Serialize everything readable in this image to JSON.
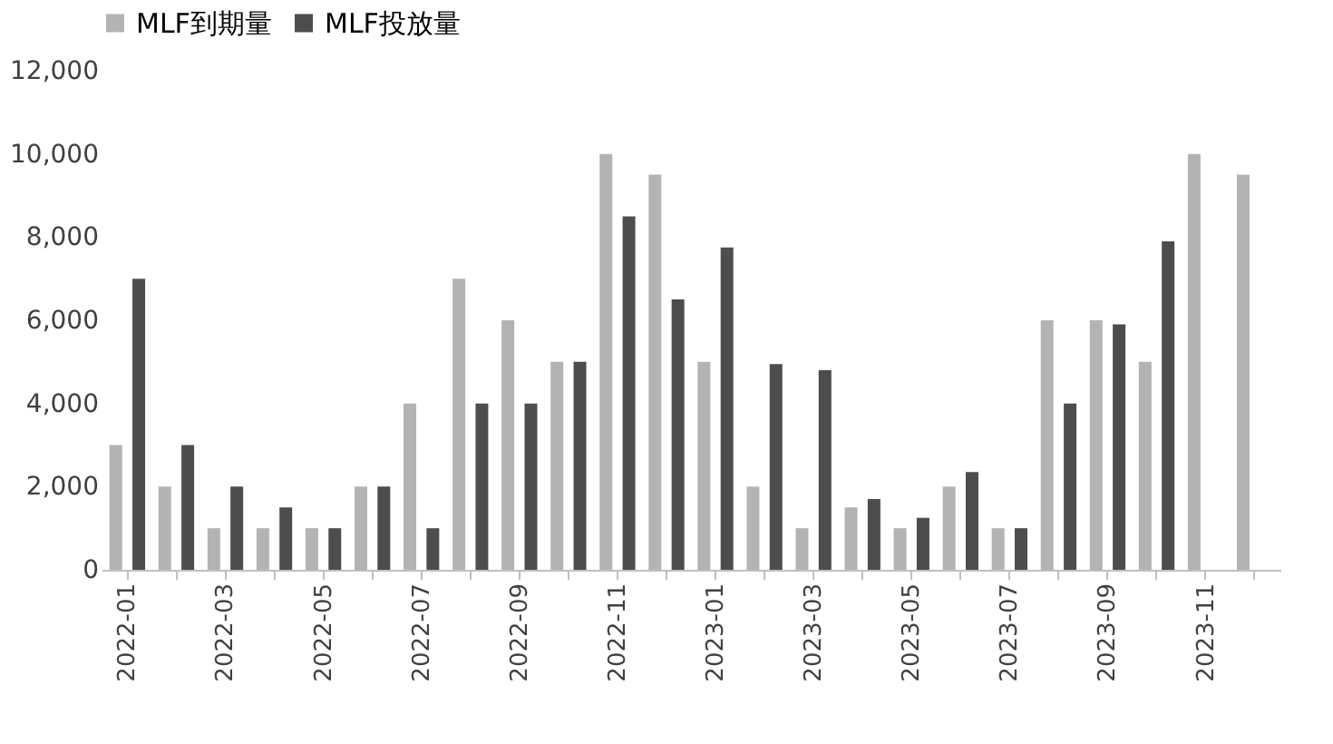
{
  "chart_data": {
    "type": "bar",
    "categories": [
      "2022-01",
      null,
      "2022-03",
      null,
      "2022-05",
      null,
      "2022-07",
      null,
      "2022-09",
      null,
      "2022-11",
      null,
      "2023-01",
      null,
      "2023-03",
      null,
      "2023-05",
      null,
      "2023-07",
      null,
      "2023-09",
      null,
      "2023-11",
      null
    ],
    "series": [
      {
        "name": "MLF到期量",
        "color": "#b3b3b3",
        "values": [
          3000,
          2000,
          1000,
          1000,
          1000,
          2000,
          4000,
          7000,
          6000,
          5000,
          10000,
          9500,
          5000,
          2000,
          1000,
          1500,
          1000,
          2000,
          1000,
          6000,
          6000,
          5000,
          10000,
          9500
        ]
      },
      {
        "name": "MLF投放量",
        "color": "#4d4d4d",
        "values": [
          7000,
          3000,
          2000,
          1500,
          1000,
          2000,
          1000,
          4000,
          4000,
          5000,
          8500,
          6500,
          7750,
          4950,
          4800,
          1700,
          1250,
          2350,
          1000,
          4000,
          5900,
          7900,
          null,
          null
        ]
      }
    ],
    "ylim": [
      0,
      12000
    ],
    "yticks": [
      0,
      {
        "value": 2000,
        "label": "2,000"
      },
      {
        "value": 4000,
        "label": "4,000"
      },
      {
        "value": 6000,
        "label": "6,000"
      },
      {
        "value": 8000,
        "label": "8,000"
      },
      {
        "value": 10000,
        "label": "10,000"
      },
      {
        "value": 12000,
        "label": "12,000"
      }
    ],
    "grid": false,
    "legend": "top"
  }
}
